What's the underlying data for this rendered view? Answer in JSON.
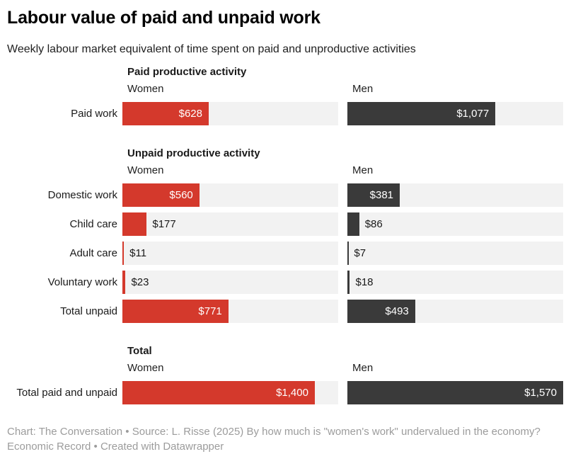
{
  "page": {
    "title": "Labour value of paid and unpaid work",
    "subtitle": "Weekly labour market equivalent of time spent on paid and unproductive activities",
    "footer": "Chart: The Conversation • Source: L. Risse (2025) By how much is \"women's work\" undervalued in the economy? Economic Record • Created with Datawrapper"
  },
  "colors": {
    "women_bar": "#d4392c",
    "men_bar": "#3a3a3a",
    "track": "#f2f2f2",
    "value_inside_text": "#ffffff",
    "value_outside_text": "#1a1a1a",
    "footer_text": "#9c9c9c"
  },
  "chart_data": {
    "type": "bar",
    "orientation": "horizontal",
    "title": "Labour value of paid and unpaid work",
    "subtitle": "Weekly labour market equivalent of time spent on paid and unproductive activities",
    "axis_max": 1570,
    "grid": false,
    "legend_position": "column-headers",
    "column_headers": [
      "Women",
      "Men"
    ],
    "series_keys": [
      "women",
      "men"
    ],
    "sections": [
      {
        "header": "Paid productive activity",
        "rows": [
          {
            "category": "Paid work",
            "values": {
              "women": 628,
              "men": 1077
            },
            "labels": {
              "women": "$628",
              "men": "$1,077"
            }
          }
        ]
      },
      {
        "header": "Unpaid productive activity",
        "rows": [
          {
            "category": "Domestic work",
            "values": {
              "women": 560,
              "men": 381
            },
            "labels": {
              "women": "$560",
              "men": "$381"
            }
          },
          {
            "category": "Child care",
            "values": {
              "women": 177,
              "men": 86
            },
            "labels": {
              "women": "$177",
              "men": "$86"
            }
          },
          {
            "category": "Adult care",
            "values": {
              "women": 11,
              "men": 7
            },
            "labels": {
              "women": "$11",
              "men": "$7"
            }
          },
          {
            "category": "Voluntary work",
            "values": {
              "women": 23,
              "men": 18
            },
            "labels": {
              "women": "$23",
              "men": "$18"
            }
          },
          {
            "category": "Total unpaid",
            "values": {
              "women": 771,
              "men": 493
            },
            "labels": {
              "women": "$771",
              "men": "$493"
            }
          }
        ]
      },
      {
        "header": "Total",
        "rows": [
          {
            "category": "Total paid and unpaid",
            "values": {
              "women": 1400,
              "men": 1570
            },
            "labels": {
              "women": "$1,400",
              "men": "$1,570"
            }
          }
        ]
      }
    ]
  }
}
